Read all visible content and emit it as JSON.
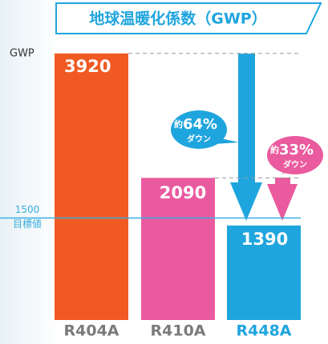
{
  "chart_data": {
    "type": "bar",
    "title": "地球温暖化係数（GWP）",
    "y_label": "GWP",
    "categories": [
      "R404A",
      "R410A",
      "R448A"
    ],
    "values": [
      3920,
      2090,
      1390
    ],
    "colors": [
      "#f05a22",
      "#ea5a9e",
      "#1fa5de"
    ],
    "category_colors": [
      "#7b7b7b",
      "#7b7b7b",
      "#1fa5de"
    ],
    "ylim": [
      0,
      4000
    ],
    "reference_line": {
      "value": 1500,
      "label": "目標値",
      "color": "#3aaee0"
    },
    "annotations": [
      {
        "prefix": "約",
        "value": "64%",
        "note": "ダウン",
        "color": "#1fa5de"
      },
      {
        "prefix": "約",
        "value": "33%",
        "note": "ダウン",
        "color": "#ea5a9e"
      }
    ]
  }
}
